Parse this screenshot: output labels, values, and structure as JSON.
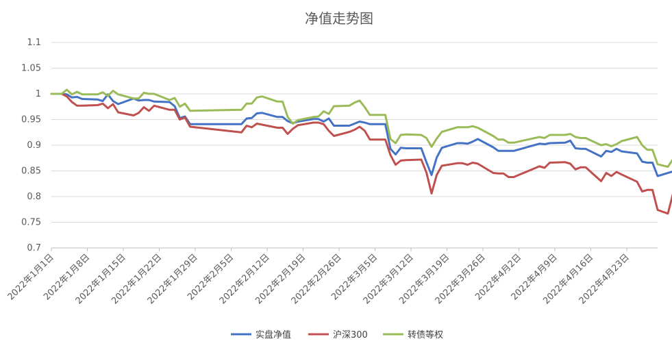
{
  "chart_data": {
    "type": "line",
    "title": "净值走势图",
    "xlabel": "",
    "ylabel": "",
    "ylim": [
      0.7,
      1.1
    ],
    "yticks": [
      "0.7",
      "0.75",
      "0.8",
      "0.85",
      "0.9",
      "0.95",
      "1",
      "1.05",
      "1.1"
    ],
    "xlim": [
      "2022-01-01",
      "2022-04-30"
    ],
    "xtick_labels": [
      "2022年1月1日",
      "2022年1月8日",
      "2022年1月15日",
      "2022年1月22日",
      "2022年1月29日",
      "2022年2月5日",
      "2022年2月12日",
      "2022年2月19日",
      "2022年2月26日",
      "2022年3月5日",
      "2022年3月12日",
      "2022年3月19日",
      "2022年3月26日",
      "2022年4月2日",
      "2022年4月9日",
      "2022年4月16日",
      "2022年4月23日"
    ],
    "grid": "horizontal",
    "legend_position": "bottom",
    "series": [
      {
        "name": "实盘净值",
        "color": "#4472C4",
        "points": [
          [
            "2022-01-01",
            1.0
          ],
          [
            "2022-01-03",
            1.0
          ],
          [
            "2022-01-04",
            0.999
          ],
          [
            "2022-01-05",
            0.993
          ],
          [
            "2022-01-06",
            0.994
          ],
          [
            "2022-01-07",
            0.99
          ],
          [
            "2022-01-10",
            0.989
          ],
          [
            "2022-01-11",
            0.986
          ],
          [
            "2022-01-12",
            0.999
          ],
          [
            "2022-01-13",
            0.986
          ],
          [
            "2022-01-14",
            0.98
          ],
          [
            "2022-01-17",
            0.991
          ],
          [
            "2022-01-18",
            0.987
          ],
          [
            "2022-01-19",
            0.988
          ],
          [
            "2022-01-20",
            0.988
          ],
          [
            "2022-01-21",
            0.985
          ],
          [
            "2022-01-24",
            0.984
          ],
          [
            "2022-01-25",
            0.976
          ],
          [
            "2022-01-26",
            0.953
          ],
          [
            "2022-01-27",
            0.956
          ],
          [
            "2022-01-28",
            0.941
          ],
          [
            "2022-02-07",
            0.941
          ],
          [
            "2022-02-08",
            0.952
          ],
          [
            "2022-02-09",
            0.953
          ],
          [
            "2022-02-10",
            0.962
          ],
          [
            "2022-02-11",
            0.963
          ],
          [
            "2022-02-14",
            0.955
          ],
          [
            "2022-02-15",
            0.955
          ],
          [
            "2022-02-16",
            0.947
          ],
          [
            "2022-02-17",
            0.943
          ],
          [
            "2022-02-18",
            0.946
          ],
          [
            "2022-02-21",
            0.951
          ],
          [
            "2022-02-22",
            0.951
          ],
          [
            "2022-02-23",
            0.946
          ],
          [
            "2022-02-24",
            0.952
          ],
          [
            "2022-02-25",
            0.938
          ],
          [
            "2022-02-28",
            0.938
          ],
          [
            "2022-03-01",
            0.942
          ],
          [
            "2022-03-02",
            0.946
          ],
          [
            "2022-03-03",
            0.944
          ],
          [
            "2022-03-04",
            0.941
          ],
          [
            "2022-03-07",
            0.941
          ],
          [
            "2022-03-08",
            0.893
          ],
          [
            "2022-03-09",
            0.882
          ],
          [
            "2022-03-10",
            0.895
          ],
          [
            "2022-03-11",
            0.894
          ],
          [
            "2022-03-14",
            0.894
          ],
          [
            "2022-03-15",
            0.867
          ],
          [
            "2022-03-16",
            0.842
          ],
          [
            "2022-03-17",
            0.876
          ],
          [
            "2022-03-18",
            0.895
          ],
          [
            "2022-03-21",
            0.904
          ],
          [
            "2022-03-22",
            0.904
          ],
          [
            "2022-03-23",
            0.903
          ],
          [
            "2022-03-24",
            0.907
          ],
          [
            "2022-03-25",
            0.912
          ],
          [
            "2022-03-28",
            0.896
          ],
          [
            "2022-03-29",
            0.889
          ],
          [
            "2022-03-30",
            0.889
          ],
          [
            "2022-03-31",
            0.889
          ],
          [
            "2022-04-01",
            0.889
          ],
          [
            "2022-04-06",
            0.903
          ],
          [
            "2022-04-07",
            0.902
          ],
          [
            "2022-04-08",
            0.904
          ],
          [
            "2022-04-11",
            0.905
          ],
          [
            "2022-04-12",
            0.909
          ],
          [
            "2022-04-13",
            0.894
          ],
          [
            "2022-04-14",
            0.893
          ],
          [
            "2022-04-15",
            0.893
          ],
          [
            "2022-04-18",
            0.878
          ],
          [
            "2022-04-19",
            0.889
          ],
          [
            "2022-04-20",
            0.887
          ],
          [
            "2022-04-21",
            0.893
          ],
          [
            "2022-04-22",
            0.888
          ],
          [
            "2022-04-25",
            0.884
          ],
          [
            "2022-04-26",
            0.868
          ],
          [
            "2022-04-27",
            0.866
          ],
          [
            "2022-04-28",
            0.866
          ],
          [
            "2022-04-29",
            0.84
          ],
          [
            "2022-05-02",
            0.849
          ]
        ]
      },
      {
        "name": "沪深300",
        "color": "#C0504D",
        "points": [
          [
            "2022-01-01",
            1.0
          ],
          [
            "2022-01-03",
            1.0
          ],
          [
            "2022-01-04",
            0.995
          ],
          [
            "2022-01-05",
            0.984
          ],
          [
            "2022-01-06",
            0.977
          ],
          [
            "2022-01-07",
            0.977
          ],
          [
            "2022-01-10",
            0.978
          ],
          [
            "2022-01-11",
            0.981
          ],
          [
            "2022-01-12",
            0.972
          ],
          [
            "2022-01-13",
            0.98
          ],
          [
            "2022-01-14",
            0.964
          ],
          [
            "2022-01-17",
            0.958
          ],
          [
            "2022-01-18",
            0.963
          ],
          [
            "2022-01-19",
            0.974
          ],
          [
            "2022-01-20",
            0.967
          ],
          [
            "2022-01-21",
            0.977
          ],
          [
            "2022-01-24",
            0.969
          ],
          [
            "2022-01-25",
            0.969
          ],
          [
            "2022-01-26",
            0.95
          ],
          [
            "2022-01-27",
            0.954
          ],
          [
            "2022-01-28",
            0.936
          ],
          [
            "2022-02-07",
            0.925
          ],
          [
            "2022-02-08",
            0.938
          ],
          [
            "2022-02-09",
            0.935
          ],
          [
            "2022-02-10",
            0.942
          ],
          [
            "2022-02-11",
            0.94
          ],
          [
            "2022-02-14",
            0.934
          ],
          [
            "2022-02-15",
            0.934
          ],
          [
            "2022-02-16",
            0.922
          ],
          [
            "2022-02-17",
            0.932
          ],
          [
            "2022-02-18",
            0.939
          ],
          [
            "2022-02-21",
            0.944
          ],
          [
            "2022-02-22",
            0.944
          ],
          [
            "2022-02-23",
            0.941
          ],
          [
            "2022-02-24",
            0.928
          ],
          [
            "2022-02-25",
            0.918
          ],
          [
            "2022-02-28",
            0.926
          ],
          [
            "2022-03-01",
            0.93
          ],
          [
            "2022-03-02",
            0.936
          ],
          [
            "2022-03-03",
            0.928
          ],
          [
            "2022-03-04",
            0.911
          ],
          [
            "2022-03-07",
            0.911
          ],
          [
            "2022-03-08",
            0.881
          ],
          [
            "2022-03-09",
            0.862
          ],
          [
            "2022-03-10",
            0.87
          ],
          [
            "2022-03-11",
            0.871
          ],
          [
            "2022-03-14",
            0.872
          ],
          [
            "2022-03-15",
            0.847
          ],
          [
            "2022-03-16",
            0.806
          ],
          [
            "2022-03-17",
            0.842
          ],
          [
            "2022-03-18",
            0.86
          ],
          [
            "2022-03-21",
            0.865
          ],
          [
            "2022-03-22",
            0.865
          ],
          [
            "2022-03-23",
            0.862
          ],
          [
            "2022-03-24",
            0.866
          ],
          [
            "2022-03-25",
            0.864
          ],
          [
            "2022-03-28",
            0.846
          ],
          [
            "2022-03-29",
            0.845
          ],
          [
            "2022-03-30",
            0.845
          ],
          [
            "2022-03-31",
            0.838
          ],
          [
            "2022-04-01",
            0.838
          ],
          [
            "2022-04-06",
            0.859
          ],
          [
            "2022-04-07",
            0.856
          ],
          [
            "2022-04-08",
            0.866
          ],
          [
            "2022-04-11",
            0.867
          ],
          [
            "2022-04-12",
            0.864
          ],
          [
            "2022-04-13",
            0.853
          ],
          [
            "2022-04-14",
            0.857
          ],
          [
            "2022-04-15",
            0.857
          ],
          [
            "2022-04-18",
            0.83
          ],
          [
            "2022-04-19",
            0.846
          ],
          [
            "2022-04-20",
            0.84
          ],
          [
            "2022-04-21",
            0.848
          ],
          [
            "2022-04-22",
            0.843
          ],
          [
            "2022-04-25",
            0.829
          ],
          [
            "2022-04-26",
            0.81
          ],
          [
            "2022-04-27",
            0.813
          ],
          [
            "2022-04-28",
            0.813
          ],
          [
            "2022-04-29",
            0.774
          ],
          [
            "2022-05-01",
            0.767
          ],
          [
            "2022-05-02",
            0.806
          ]
        ]
      },
      {
        "name": "转债等权",
        "color": "#9BBB59",
        "points": [
          [
            "2022-01-01",
            1.0
          ],
          [
            "2022-01-03",
            1.0
          ],
          [
            "2022-01-04",
            1.008
          ],
          [
            "2022-01-05",
            0.999
          ],
          [
            "2022-01-06",
            1.004
          ],
          [
            "2022-01-07",
            0.999
          ],
          [
            "2022-01-10",
            0.999
          ],
          [
            "2022-01-11",
            1.003
          ],
          [
            "2022-01-12",
            0.996
          ],
          [
            "2022-01-13",
            1.006
          ],
          [
            "2022-01-14",
            0.999
          ],
          [
            "2022-01-17",
            0.991
          ],
          [
            "2022-01-18",
            0.991
          ],
          [
            "2022-01-19",
            1.002
          ],
          [
            "2022-01-20",
            1.0
          ],
          [
            "2022-01-21",
            1.0
          ],
          [
            "2022-01-24",
            0.988
          ],
          [
            "2022-01-25",
            0.992
          ],
          [
            "2022-01-26",
            0.975
          ],
          [
            "2022-01-27",
            0.981
          ],
          [
            "2022-01-28",
            0.967
          ],
          [
            "2022-02-07",
            0.969
          ],
          [
            "2022-02-08",
            0.981
          ],
          [
            "2022-02-09",
            0.981
          ],
          [
            "2022-02-10",
            0.993
          ],
          [
            "2022-02-11",
            0.995
          ],
          [
            "2022-02-14",
            0.985
          ],
          [
            "2022-02-15",
            0.985
          ],
          [
            "2022-02-16",
            0.955
          ],
          [
            "2022-02-17",
            0.942
          ],
          [
            "2022-02-18",
            0.949
          ],
          [
            "2022-02-21",
            0.955
          ],
          [
            "2022-02-22",
            0.956
          ],
          [
            "2022-02-23",
            0.966
          ],
          [
            "2022-02-24",
            0.961
          ],
          [
            "2022-02-25",
            0.976
          ],
          [
            "2022-02-28",
            0.977
          ],
          [
            "2022-03-01",
            0.983
          ],
          [
            "2022-03-02",
            0.987
          ],
          [
            "2022-03-03",
            0.974
          ],
          [
            "2022-03-04",
            0.959
          ],
          [
            "2022-03-07",
            0.959
          ],
          [
            "2022-03-08",
            0.912
          ],
          [
            "2022-03-09",
            0.904
          ],
          [
            "2022-03-10",
            0.92
          ],
          [
            "2022-03-11",
            0.921
          ],
          [
            "2022-03-14",
            0.92
          ],
          [
            "2022-03-15",
            0.914
          ],
          [
            "2022-03-16",
            0.897
          ],
          [
            "2022-03-17",
            0.913
          ],
          [
            "2022-03-18",
            0.926
          ],
          [
            "2022-03-21",
            0.935
          ],
          [
            "2022-03-22",
            0.935
          ],
          [
            "2022-03-23",
            0.935
          ],
          [
            "2022-03-24",
            0.937
          ],
          [
            "2022-03-25",
            0.934
          ],
          [
            "2022-03-28",
            0.918
          ],
          [
            "2022-03-29",
            0.911
          ],
          [
            "2022-03-30",
            0.911
          ],
          [
            "2022-03-31",
            0.905
          ],
          [
            "2022-04-01",
            0.905
          ],
          [
            "2022-04-06",
            0.916
          ],
          [
            "2022-04-07",
            0.914
          ],
          [
            "2022-04-08",
            0.92
          ],
          [
            "2022-04-11",
            0.92
          ],
          [
            "2022-04-12",
            0.922
          ],
          [
            "2022-04-13",
            0.916
          ],
          [
            "2022-04-14",
            0.914
          ],
          [
            "2022-04-15",
            0.914
          ],
          [
            "2022-04-18",
            0.9
          ],
          [
            "2022-04-19",
            0.902
          ],
          [
            "2022-04-20",
            0.898
          ],
          [
            "2022-04-21",
            0.902
          ],
          [
            "2022-04-22",
            0.908
          ],
          [
            "2022-04-25",
            0.916
          ],
          [
            "2022-04-26",
            0.9
          ],
          [
            "2022-04-27",
            0.891
          ],
          [
            "2022-04-28",
            0.891
          ],
          [
            "2022-04-29",
            0.863
          ],
          [
            "2022-05-01",
            0.858
          ],
          [
            "2022-05-02",
            0.873
          ]
        ]
      }
    ]
  }
}
